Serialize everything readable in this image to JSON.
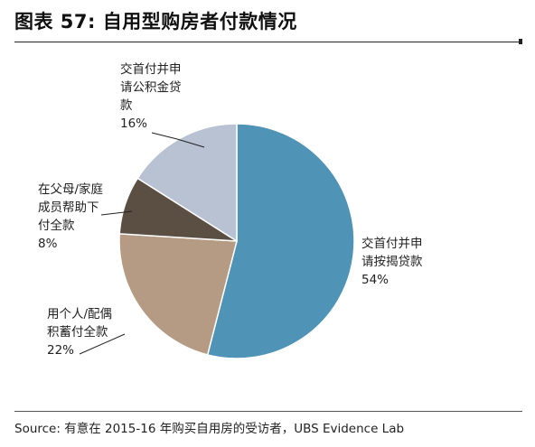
{
  "title": "图表 57: 自用型购房者付款情况",
  "source": "Source:  有意在 2015-16 年购买自用房的受访者，UBS Evidence Lab",
  "chart_data": {
    "type": "pie",
    "slices": [
      {
        "label_lines": [
          "交首付并申",
          "请按揭贷款"
        ],
        "percent_text": "54%",
        "value": 54,
        "color": "#4f93b6"
      },
      {
        "label_lines": [
          "用个人/配偶",
          "积蓄付全款"
        ],
        "percent_text": "22%",
        "value": 22,
        "color": "#b59b83"
      },
      {
        "label_lines": [
          "在父母/家庭",
          "成员帮助下",
          "付全款"
        ],
        "percent_text": "8%",
        "value": 8,
        "color": "#5b4f44"
      },
      {
        "label_lines": [
          "交首付并申",
          "请公积金贷",
          "款"
        ],
        "percent_text": "16%",
        "value": 16,
        "color": "#b9c2d2"
      }
    ]
  }
}
